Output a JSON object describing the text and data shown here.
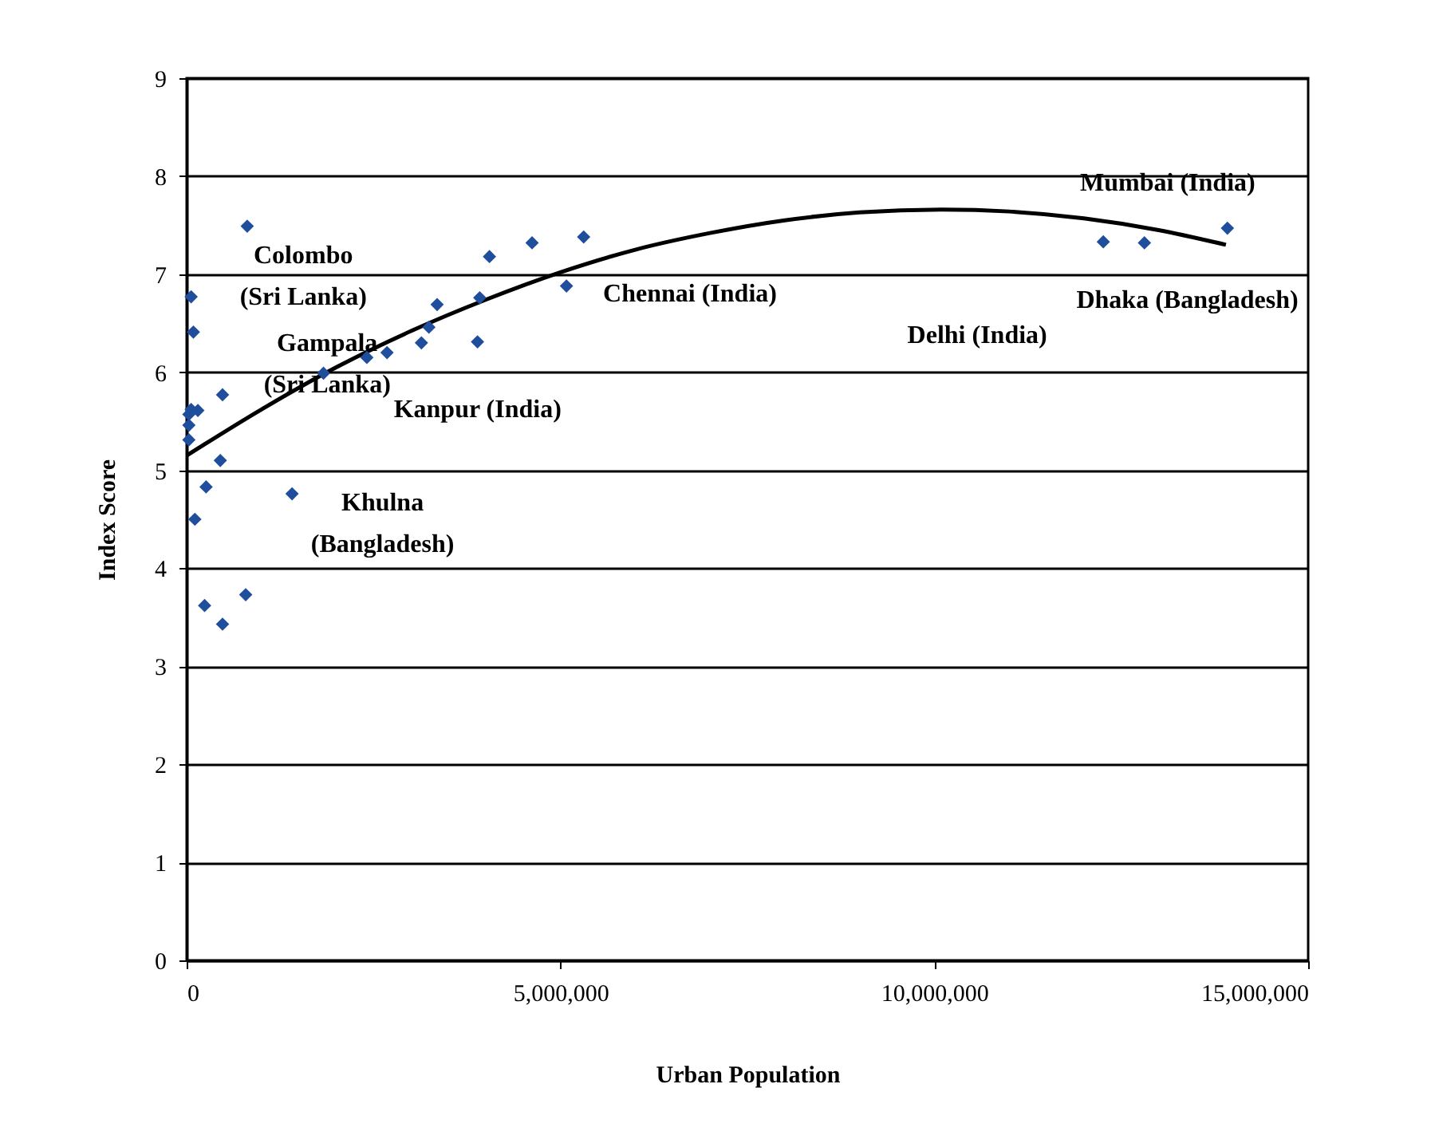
{
  "chart_data": {
    "type": "scatter",
    "xlabel": "Urban Population",
    "ylabel": "Index Score",
    "xlim": [
      0,
      15000000
    ],
    "xticks": [
      {
        "value": 0,
        "label": "0"
      },
      {
        "value": 5000000,
        "label": "5,000,000"
      },
      {
        "value": 10000000,
        "label": "10,000,000"
      },
      {
        "value": 15000000,
        "label": "15,000,000"
      }
    ],
    "ylim": [
      0,
      9
    ],
    "yticks": [
      0,
      1,
      2,
      3,
      4,
      5,
      6,
      7,
      8,
      9
    ],
    "grid": "y",
    "series": [
      {
        "marker": "diamond",
        "color": "#1f4e9c",
        "x": [
          810000,
          60000,
          90000,
          480000,
          60000,
          150000,
          30000,
          30000,
          30000,
          450000,
          260000,
          110000,
          1410000,
          240000,
          480000,
          790000,
          1830000,
          2410000,
          2680000,
          3140000,
          3240000,
          3350000,
          3890000,
          3920000,
          4050000,
          4620000,
          5310000,
          5080000,
          12260000,
          12810000,
          13920000
        ],
        "values": [
          7.49,
          6.77,
          6.41,
          5.77,
          5.62,
          5.61,
          5.57,
          5.46,
          5.31,
          5.1,
          4.83,
          4.5,
          4.76,
          3.62,
          3.43,
          3.73,
          5.99,
          6.15,
          6.2,
          6.3,
          6.46,
          6.69,
          6.31,
          6.76,
          7.18,
          7.32,
          7.38,
          6.88,
          7.33,
          7.32,
          7.47
        ]
      },
      {
        "type": "line",
        "color": "#000000",
        "x": [
          0,
          1000000,
          2000000,
          3000000,
          4000000,
          5000000,
          6000000,
          7000000,
          8000000,
          9000000,
          10100000,
          11000000,
          12000000,
          13000000,
          13900000
        ],
        "values": [
          5.15,
          5.62,
          6.05,
          6.42,
          6.74,
          7.02,
          7.25,
          7.42,
          7.55,
          7.63,
          7.66,
          7.64,
          7.57,
          7.45,
          7.3
        ]
      }
    ],
    "annotations": [
      "Colombo\n(Sri Lanka)",
      "Gampala\n(Sri Lanka)",
      "Kanpur (India)",
      "Khulna\n(Bangladesh)",
      "Chennai (India)",
      "Delhi (India)",
      "Mumbai (India)",
      "Dhaka (Bangladesh)"
    ]
  }
}
